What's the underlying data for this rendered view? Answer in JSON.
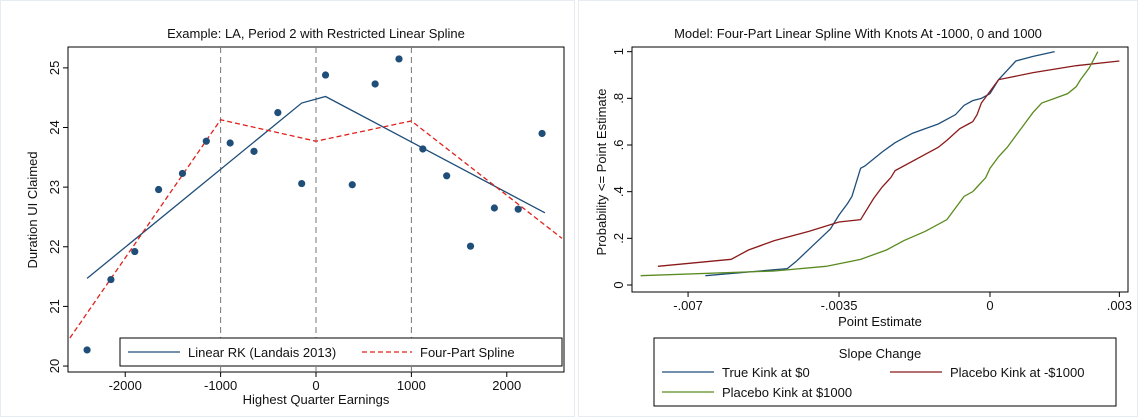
{
  "colors": {
    "navy": "#1f4e79",
    "red_dashed": "#e0201b",
    "maroon": "#8b1a1a",
    "olive_green": "#5a8a1e",
    "guide_gray": "#777777",
    "frame_gray": "#e6ecf2"
  },
  "chart_data": [
    {
      "type": "scatter",
      "title": "Example: LA, Period 2 with Restricted Linear Spline",
      "xlabel": "Highest Quarter Earnings",
      "ylabel": "Duration UI Claimed",
      "xlim": [
        -2600,
        2600
      ],
      "ylim": [
        19.9,
        25.35
      ],
      "xticks": [
        -2000,
        -1000,
        0,
        1000,
        2000
      ],
      "xtick_labels": [
        "-2000",
        "-1000",
        "0",
        "1000",
        "2000"
      ],
      "yticks": [
        20,
        21,
        22,
        23,
        24,
        25
      ],
      "ytick_labels": [
        "20",
        "21",
        "22",
        "23",
        "24",
        "25"
      ],
      "vlines": [
        -1000,
        0,
        1000
      ],
      "grid": false,
      "legend_position": "bottom",
      "points": [
        {
          "x": -2400,
          "y": 20.27
        },
        {
          "x": -2150,
          "y": 21.45
        },
        {
          "x": -1900,
          "y": 21.92
        },
        {
          "x": -1650,
          "y": 22.96
        },
        {
          "x": -1400,
          "y": 23.23
        },
        {
          "x": -1150,
          "y": 23.77
        },
        {
          "x": -900,
          "y": 23.74
        },
        {
          "x": -650,
          "y": 23.6
        },
        {
          "x": -400,
          "y": 24.25
        },
        {
          "x": -150,
          "y": 23.06
        },
        {
          "x": 100,
          "y": 24.88
        },
        {
          "x": 380,
          "y": 23.04
        },
        {
          "x": 620,
          "y": 24.73
        },
        {
          "x": 870,
          "y": 25.15
        },
        {
          "x": 1120,
          "y": 23.64
        },
        {
          "x": 1370,
          "y": 23.19
        },
        {
          "x": 1620,
          "y": 22.01
        },
        {
          "x": 1870,
          "y": 22.65
        },
        {
          "x": 2120,
          "y": 22.63
        },
        {
          "x": 2370,
          "y": 23.9
        }
      ],
      "series": [
        {
          "name": "Linear RK (Landais 2013)",
          "style": "solid",
          "color": "#1f4e79",
          "x": [
            -2400,
            -150,
            100,
            2400
          ],
          "y": [
            21.47,
            24.41,
            24.52,
            22.57
          ]
        },
        {
          "name": "Four-Part Spline",
          "style": "dashed",
          "color": "#e0201b",
          "x": [
            -2580,
            -1000,
            0,
            1000,
            2580
          ],
          "y": [
            20.47,
            24.13,
            23.77,
            24.11,
            22.14
          ]
        }
      ]
    },
    {
      "type": "line",
      "title": "Model: Four-Part Linear Spline With Knots At -1000, 0 and 1000",
      "xlabel": "Point Estimate",
      "ylabel": "Probability <= Point Estimate",
      "xlim": [
        -0.0083,
        0.0032
      ],
      "ylim": [
        -0.03,
        1.02
      ],
      "xticks": [
        -0.007,
        -0.0035,
        0,
        0.003
      ],
      "xtick_labels": [
        "-.007",
        "-.0035",
        "0",
        ".003"
      ],
      "yticks": [
        0,
        0.2,
        0.4,
        0.6,
        0.8,
        1
      ],
      "ytick_labels": [
        "0",
        ".2",
        ".4",
        ".6",
        ".8",
        "1"
      ],
      "grid": false,
      "legend_position": "bottom",
      "legend_title": "Slope Change",
      "series": [
        {
          "name": "True Kink at $0",
          "color": "#1f4e79",
          "x": [
            -0.0066,
            -0.0047,
            -0.0045,
            -0.0041,
            -0.0037,
            -0.0035,
            -0.0033,
            -0.0032,
            -0.0031,
            -0.003,
            -0.0029,
            -0.0027,
            -0.0025,
            -0.0022,
            -0.0018,
            -0.0015,
            -0.0012,
            -0.001,
            -0.0008,
            -0.0006,
            -0.0004,
            -0.0002,
            0.0,
            0.0002,
            0.0004,
            0.0006,
            0.001,
            0.0015
          ],
          "y": [
            0.04,
            0.07,
            0.1,
            0.17,
            0.24,
            0.3,
            0.35,
            0.38,
            0.44,
            0.5,
            0.51,
            0.54,
            0.57,
            0.61,
            0.65,
            0.67,
            0.69,
            0.71,
            0.73,
            0.77,
            0.79,
            0.8,
            0.82,
            0.88,
            0.92,
            0.96,
            0.98,
            1.0
          ]
        },
        {
          "name": "Placebo Kink at -$1000",
          "color": "#8b1a1a",
          "x": [
            -0.0077,
            -0.006,
            -0.0056,
            -0.005,
            -0.0042,
            -0.0035,
            -0.003,
            -0.0029,
            -0.0027,
            -0.0025,
            -0.0023,
            -0.0022,
            -0.0015,
            -0.0012,
            -0.001,
            -0.0007,
            -0.0005,
            -0.0004,
            -0.0003,
            -0.0002,
            0.0,
            0.0002,
            0.001,
            0.002,
            0.003
          ],
          "y": [
            0.08,
            0.11,
            0.15,
            0.19,
            0.23,
            0.27,
            0.28,
            0.31,
            0.37,
            0.42,
            0.46,
            0.49,
            0.56,
            0.59,
            0.62,
            0.67,
            0.69,
            0.7,
            0.73,
            0.78,
            0.83,
            0.88,
            0.91,
            0.94,
            0.96
          ]
        },
        {
          "name": "Placebo Kink at $1000",
          "color": "#5a8a1e",
          "x": [
            -0.0081,
            -0.005,
            -0.0038,
            -0.003,
            -0.0024,
            -0.002,
            -0.0015,
            -0.001,
            -0.0008,
            -0.0006,
            -0.0004,
            -0.0003,
            -0.0001,
            0.0,
            0.0002,
            0.0004,
            0.0006,
            0.0008,
            0.001,
            0.0012,
            0.0015,
            0.0018,
            0.002,
            0.0021,
            0.0023,
            0.0025
          ],
          "y": [
            0.04,
            0.06,
            0.08,
            0.11,
            0.15,
            0.19,
            0.23,
            0.28,
            0.33,
            0.38,
            0.4,
            0.42,
            0.46,
            0.5,
            0.55,
            0.59,
            0.64,
            0.69,
            0.74,
            0.78,
            0.8,
            0.82,
            0.85,
            0.88,
            0.93,
            1.0
          ]
        }
      ]
    }
  ]
}
